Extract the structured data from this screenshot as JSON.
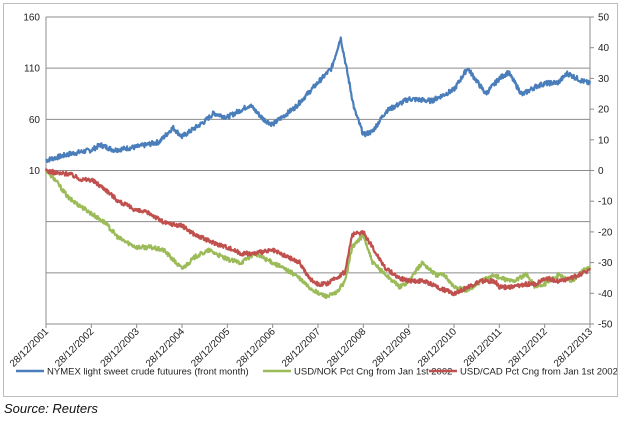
{
  "source": "Source: Reuters",
  "chart_data": {
    "type": "line",
    "x_tick_labels": [
      "28/12/2001",
      "28/12/2002",
      "28/12/2003",
      "28/12/2004",
      "28/12/2005",
      "28/12/2006",
      "28/12/2007",
      "28/12/2008",
      "28/12/2009",
      "28/12/2010",
      "28/12/2011",
      "28/12/2012",
      "28/12/2013"
    ],
    "left_axis": {
      "ticks": [
        "160",
        "110",
        "60",
        "10"
      ],
      "values": [
        160,
        110,
        60,
        10
      ],
      "ylim": [
        -140,
        160
      ]
    },
    "right_axis": {
      "ticks": [
        "50",
        "40",
        "30",
        "20",
        "10",
        "0",
        "-10",
        "-20",
        "-30",
        "-40",
        "-50"
      ],
      "values": [
        50,
        40,
        30,
        20,
        10,
        0,
        -10,
        -20,
        -30,
        -40,
        -50
      ],
      "ylim": [
        -50,
        50
      ]
    },
    "grid": "horizontal at left-axis ticks",
    "legend_position": "bottom",
    "series": [
      {
        "name": "NYMEX light sweet crude futuures (front month)",
        "axis": "left",
        "color": "#4a7ebb",
        "x": [
          2002.0,
          2002.5,
          2003.0,
          2003.2,
          2003.5,
          2004.0,
          2004.5,
          2004.8,
          2005.0,
          2005.5,
          2005.7,
          2006.0,
          2006.5,
          2006.8,
          2007.0,
          2007.5,
          2008.0,
          2008.3,
          2008.5,
          2008.8,
          2009.0,
          2009.2,
          2009.5,
          2010.0,
          2010.5,
          2011.0,
          2011.3,
          2011.7,
          2012.0,
          2012.2,
          2012.5,
          2012.8,
          2013.0,
          2013.3,
          2013.5,
          2013.8,
          2014.0
        ],
        "values": [
          20,
          26,
          30,
          35,
          30,
          33,
          38,
          52,
          43,
          58,
          66,
          62,
          74,
          60,
          55,
          72,
          96,
          110,
          140,
          70,
          45,
          48,
          68,
          80,
          78,
          89,
          110,
          85,
          100,
          106,
          84,
          92,
          95,
          96,
          105,
          98,
          95
        ]
      },
      {
        "name": "USD/NOK Pct Cng from Jan 1st 2002",
        "axis": "right",
        "color": "#9bbb59",
        "x": [
          2002.0,
          2002.2,
          2002.5,
          2003.0,
          2003.3,
          2003.6,
          2004.0,
          2004.3,
          2004.6,
          2005.0,
          2005.3,
          2005.6,
          2006.0,
          2006.3,
          2006.6,
          2007.0,
          2007.5,
          2007.8,
          2008.0,
          2008.2,
          2008.4,
          2008.6,
          2008.75,
          2009.0,
          2009.2,
          2009.5,
          2009.8,
          2010.0,
          2010.3,
          2010.6,
          2010.8,
          2011.0,
          2011.3,
          2011.6,
          2011.9,
          2012.0,
          2012.3,
          2012.6,
          2012.8,
          2013.0,
          2013.3,
          2013.6,
          2013.9,
          2014.0
        ],
        "values": [
          0,
          -3,
          -9,
          -14,
          -17,
          -22,
          -25,
          -25,
          -26,
          -32,
          -28,
          -26,
          -29,
          -30,
          -27,
          -30,
          -34,
          -38,
          -40,
          -41,
          -40,
          -36,
          -25,
          -21,
          -30,
          -34,
          -38,
          -36,
          -30,
          -34,
          -34,
          -38,
          -39,
          -36,
          -34,
          -35,
          -36,
          -34,
          -38,
          -37,
          -34,
          -36,
          -32,
          -32
        ]
      },
      {
        "name": "USD/CAD Pct Cng from Jan 1st 2002",
        "axis": "right",
        "color": "#c0504d",
        "x": [
          2002.0,
          2002.3,
          2002.5,
          2002.8,
          2003.0,
          2003.3,
          2003.6,
          2004.0,
          2004.3,
          2004.6,
          2005.0,
          2005.3,
          2005.6,
          2006.0,
          2006.3,
          2006.6,
          2007.0,
          2007.3,
          2007.6,
          2007.8,
          2008.0,
          2008.2,
          2008.4,
          2008.6,
          2008.75,
          2009.0,
          2009.2,
          2009.5,
          2009.8,
          2010.0,
          2010.3,
          2010.5,
          2010.8,
          2011.0,
          2011.3,
          2011.6,
          2011.9,
          2012.0,
          2012.3,
          2012.6,
          2012.8,
          2013.0,
          2013.3,
          2013.6,
          2013.9,
          2014.0
        ],
        "values": [
          0,
          -1,
          -1,
          -3,
          -3,
          -6,
          -10,
          -13,
          -14,
          -17,
          -18,
          -21,
          -23,
          -25,
          -27,
          -27,
          -26,
          -28,
          -30,
          -35,
          -37,
          -37,
          -35,
          -33,
          -21,
          -20,
          -25,
          -32,
          -35,
          -36,
          -36,
          -37,
          -39,
          -40,
          -38,
          -36,
          -36,
          -38,
          -38,
          -37,
          -37,
          -35,
          -36,
          -35,
          -33,
          -32
        ]
      }
    ]
  }
}
